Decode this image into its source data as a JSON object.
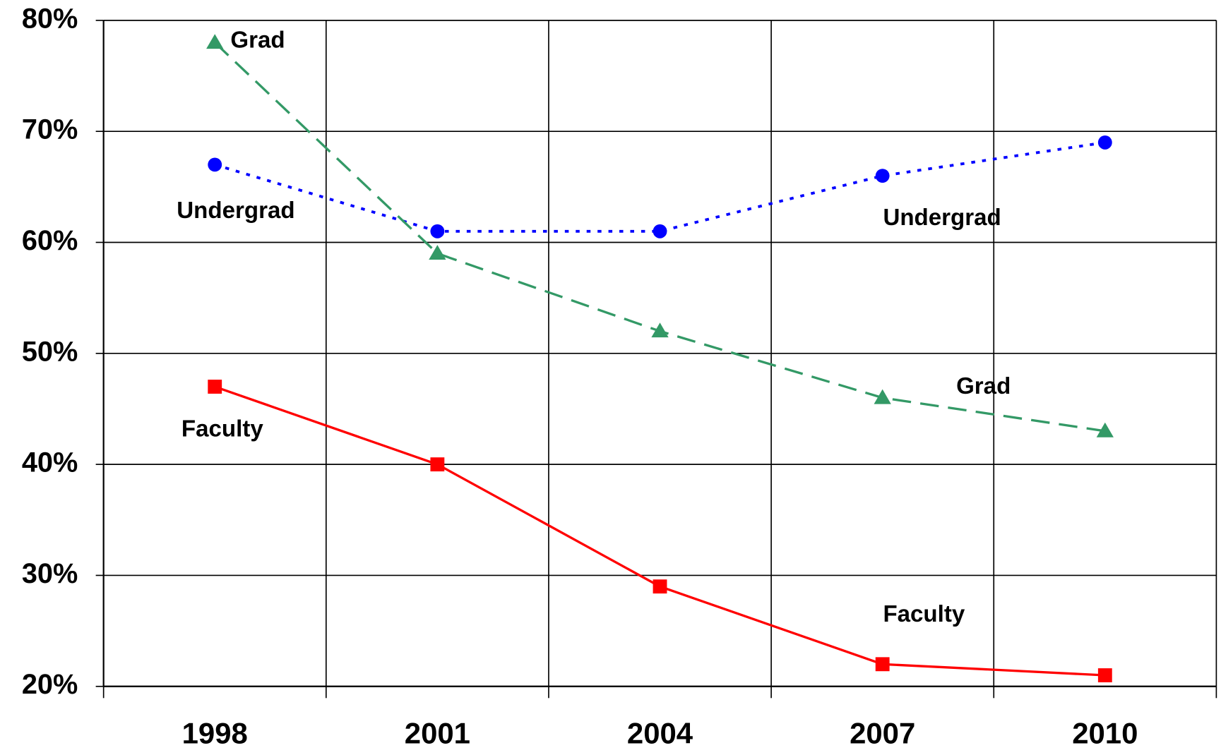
{
  "chart_data": {
    "type": "line",
    "categories": [
      "1998",
      "2001",
      "2004",
      "2007",
      "2010"
    ],
    "series": [
      {
        "name": "Undergrad",
        "color": "#0000ff",
        "marker": "circle",
        "dash": "dotted",
        "values": [
          67,
          61,
          61,
          66,
          69
        ]
      },
      {
        "name": "Grad",
        "color": "#339966",
        "marker": "triangle",
        "dash": "dashed",
        "values": [
          78,
          59,
          52,
          46,
          43
        ]
      },
      {
        "name": "Faculty",
        "color": "#ff0000",
        "marker": "square",
        "dash": "solid",
        "values": [
          47,
          40,
          29,
          22,
          21
        ]
      }
    ],
    "ylim": [
      20,
      80
    ],
    "yticks": [
      {
        "value": 20,
        "label": "20%"
      },
      {
        "value": 30,
        "label": "30%"
      },
      {
        "value": 40,
        "label": "40%"
      },
      {
        "value": 50,
        "label": "50%"
      },
      {
        "value": 60,
        "label": "60%"
      },
      {
        "value": 70,
        "label": "70%"
      },
      {
        "value": 80,
        "label": "80%"
      }
    ],
    "grid": true
  }
}
